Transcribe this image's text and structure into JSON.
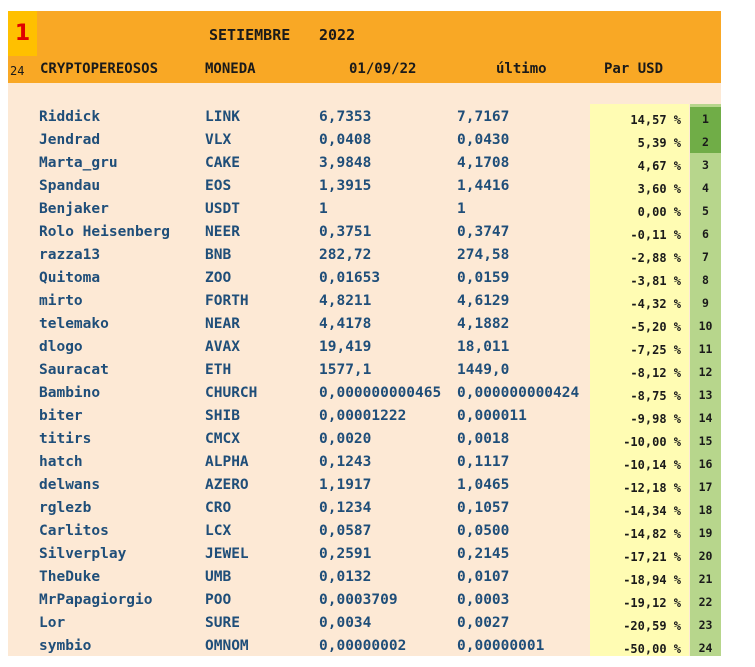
{
  "header": {
    "rank_label": "1",
    "month": "SETIEMBRE",
    "year": "2022",
    "count": "24",
    "col_name": "CRYPTOPEREOSOS",
    "col_coin": "MONEDA",
    "col_date": "01/09/22",
    "col_last": "último",
    "col_par": "Par USD"
  },
  "rows": [
    {
      "name": "Riddick",
      "coin": "LINK",
      "d1": "6,7353",
      "last": "7,7167",
      "pct": "14,57 %",
      "rank": "1"
    },
    {
      "name": "Jendrad",
      "coin": "VLX",
      "d1": "0,0408",
      "last": "0,0430",
      "pct": "5,39 %",
      "rank": "2"
    },
    {
      "name": "Marta_gru",
      "coin": "CAKE",
      "d1": "3,9848",
      "last": "4,1708",
      "pct": "4,67 %",
      "rank": "3"
    },
    {
      "name": "Spandau",
      "coin": "EOS",
      "d1": "1,3915",
      "last": "1,4416",
      "pct": "3,60 %",
      "rank": "4"
    },
    {
      "name": "Benjaker",
      "coin": "USDT",
      "d1": "1",
      "last": "1",
      "pct": "0,00 %",
      "rank": "5"
    },
    {
      "name": "Rolo Heisenberg",
      "coin": "NEER",
      "d1": "0,3751",
      "last": "0,3747",
      "pct": "-0,11 %",
      "rank": "6"
    },
    {
      "name": "razza13",
      "coin": "BNB",
      "d1": "282,72",
      "last": "274,58",
      "pct": "-2,88 %",
      "rank": "7"
    },
    {
      "name": "Quitoma",
      "coin": "ZOO",
      "d1": "0,01653",
      "last": "0,0159",
      "pct": "-3,81 %",
      "rank": "8"
    },
    {
      "name": "mirto",
      "coin": "FORTH",
      "d1": "4,8211",
      "last": "4,6129",
      "pct": "-4,32 %",
      "rank": "9"
    },
    {
      "name": "telemako",
      "coin": "NEAR",
      "d1": "4,4178",
      "last": "4,1882",
      "pct": "-5,20 %",
      "rank": "10"
    },
    {
      "name": "dlogo",
      "coin": "AVAX",
      "d1": "19,419",
      "last": "18,011",
      "pct": "-7,25 %",
      "rank": "11"
    },
    {
      "name": "Sauracat",
      "coin": "ETH",
      "d1": "1577,1",
      "last": "1449,0",
      "pct": "-8,12 %",
      "rank": "12"
    },
    {
      "name": "Bambino",
      "coin": "CHURCH",
      "d1": "0,000000000465",
      "last": "0,000000000424",
      "pct": "-8,75 %",
      "rank": "13"
    },
    {
      "name": "biter",
      "coin": "SHIB",
      "d1": "0,00001222",
      "last": "0,000011",
      "pct": "-9,98 %",
      "rank": "14"
    },
    {
      "name": "titirs",
      "coin": "CMCX",
      "d1": "0,0020",
      "last": "0,0018",
      "pct": "-10,00 %",
      "rank": "15"
    },
    {
      "name": "hatch",
      "coin": "ALPHA",
      "d1": "0,1243",
      "last": "0,1117",
      "pct": "-10,14 %",
      "rank": "16"
    },
    {
      "name": "delwans",
      "coin": "AZERO",
      "d1": "1,1917",
      "last": "1,0465",
      "pct": "-12,18 %",
      "rank": "17"
    },
    {
      "name": "rglezb",
      "coin": "CRO",
      "d1": "0,1234",
      "last": "0,1057",
      "pct": "-14,34 %",
      "rank": "18"
    },
    {
      "name": "Carlitos",
      "coin": "LCX",
      "d1": "0,0587",
      "last": "0,0500",
      "pct": "-14,82 %",
      "rank": "19"
    },
    {
      "name": "Silverplay",
      "coin": "JEWEL",
      "d1": "0,2591",
      "last": "0,2145",
      "pct": "-17,21 %",
      "rank": "20"
    },
    {
      "name": "TheDuke",
      "coin": "UMB",
      "d1": "0,0132",
      "last": "0,0107",
      "pct": "-18,94 %",
      "rank": "21"
    },
    {
      "name": "MrPapagiorgio",
      "coin": "POO",
      "d1": "0,0003709",
      "last": "0,0003",
      "pct": "-19,12 %",
      "rank": "22"
    },
    {
      "name": "Lor",
      "coin": "SURE",
      "d1": "0,0034",
      "last": "0,0027",
      "pct": "-20,59 %",
      "rank": "23"
    },
    {
      "name": "symbio",
      "coin": "OMNOM",
      "d1": "0,00000002",
      "last": "0,00000001",
      "pct": "-50,00 %",
      "rank": "24"
    }
  ],
  "colors": {
    "header_bg": "#f9a825",
    "rank_box_bg": "#ffc000",
    "rank_box_text": "#e00000",
    "sheet_bg": "#fde9d5",
    "pct_band_bg": "#fffcb3",
    "rank_band_bg": "#b7d68c",
    "top_rank_bg": "#70ad47",
    "text_blue": "#1f4e79"
  }
}
